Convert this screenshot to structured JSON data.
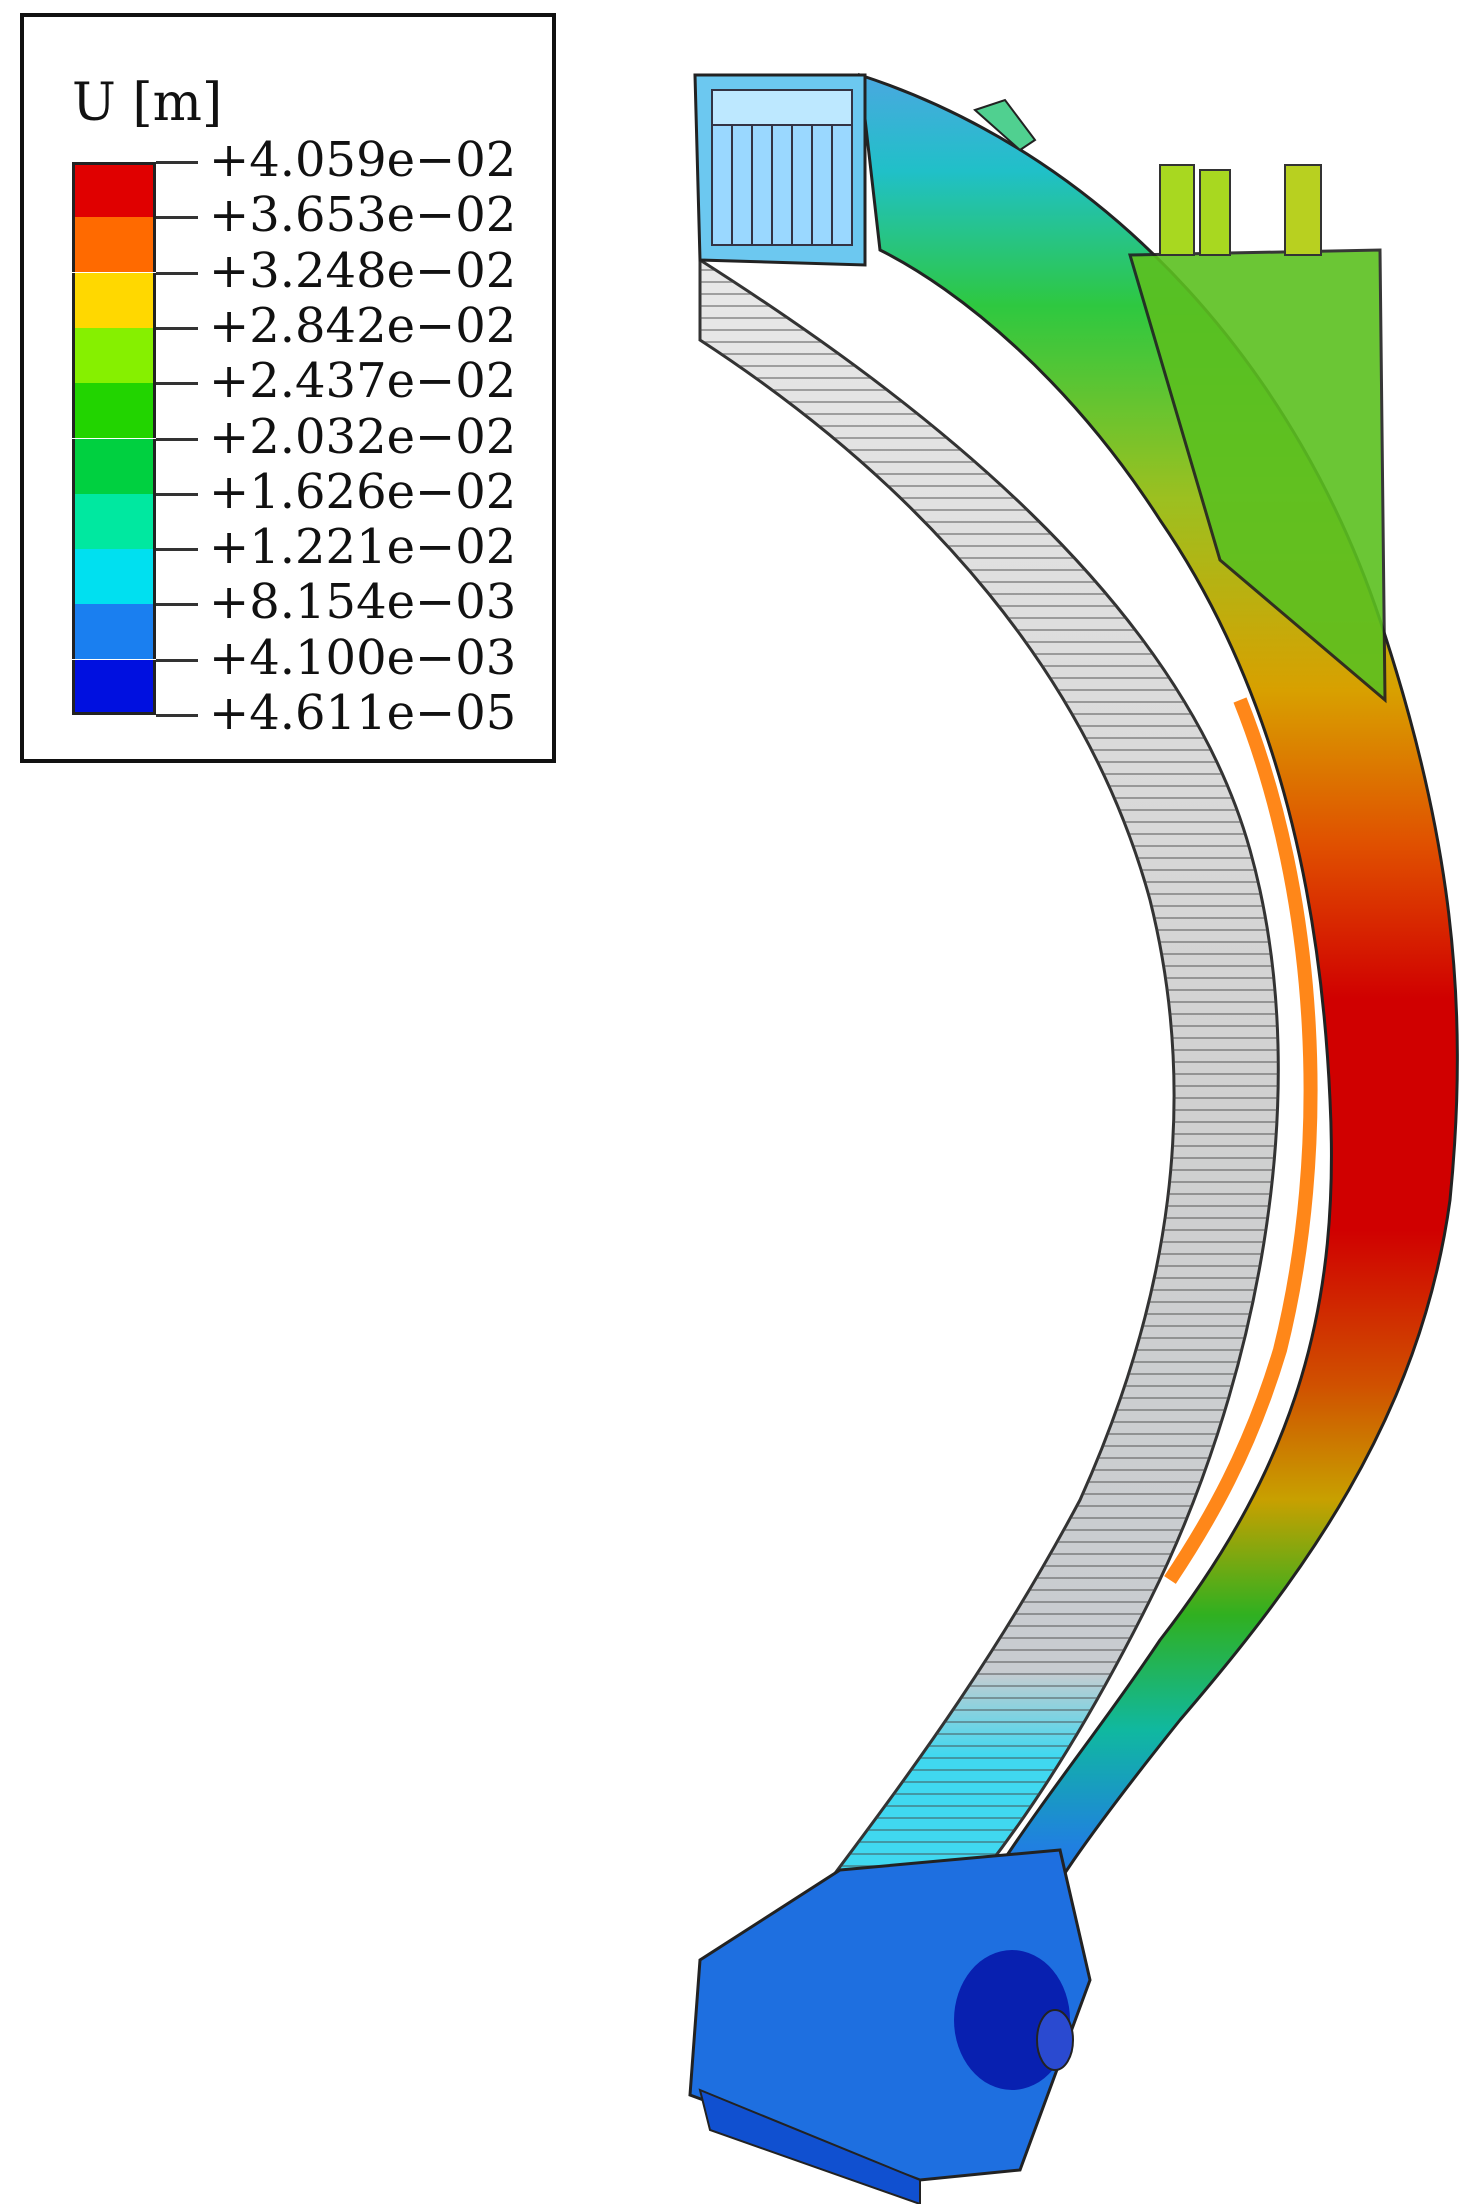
{
  "legend": {
    "title": "U [m]",
    "ticks": [
      "+4.059e−02",
      "+3.653e−02",
      "+3.248e−02",
      "+2.842e−02",
      "+2.437e−02",
      "+2.032e−02",
      "+1.626e−02",
      "+1.221e−02",
      "+8.154e−03",
      "+4.100e−03",
      "+4.611e−05"
    ],
    "colors": [
      "#e00000",
      "#ff6a00",
      "#ffd800",
      "#86f000",
      "#22d400",
      "#00d040",
      "#00e8a0",
      "#00e0f0",
      "#1a7ff0",
      "#0010e0",
      "#0010e0"
    ]
  }
}
